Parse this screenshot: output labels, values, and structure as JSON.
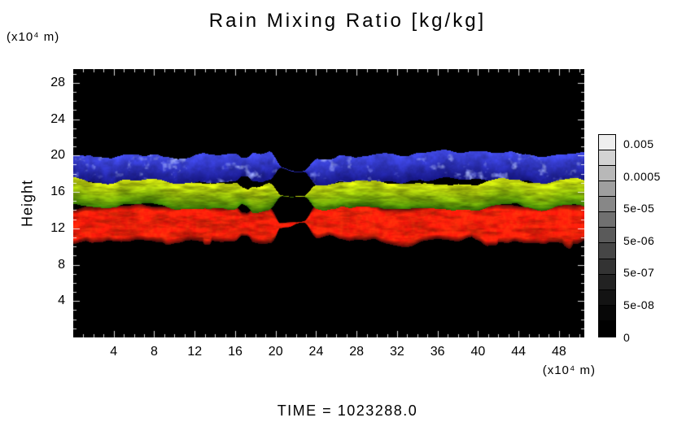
{
  "title": "Rain Mixing Ratio [kg/kg]",
  "axes": {
    "ylabel": "Height",
    "y_unit": "(x10⁴ m)",
    "x_unit": "(x10⁴ m)"
  },
  "time_label": "TIME  =  1023288.0",
  "chart_data": {
    "type": "heatmap",
    "title": "Rain Mixing Ratio [kg/kg]",
    "xlabel": "(x10⁴ m)",
    "ylabel": "Height (x10⁴ m)",
    "xlim": [
      0,
      50.5
    ],
    "ylim": [
      0,
      29.5
    ],
    "xticks": [
      4,
      8,
      12,
      16,
      20,
      24,
      28,
      32,
      36,
      40,
      44,
      48
    ],
    "yticks": [
      4,
      8,
      12,
      16,
      20,
      24,
      28
    ],
    "grid": false,
    "background": "#000000",
    "legend_position": "colorbar-right",
    "colorbar_labels": [
      "0.005",
      "0.0005",
      "5e-05",
      "5e-06",
      "5e-07",
      "5e-08",
      "0"
    ],
    "colorbar_segments": 13,
    "bands": [
      {
        "name": "upper-layer",
        "color": "#3a4cc8",
        "y_range": [
          16.9,
          20.1
        ]
      },
      {
        "name": "middle-layer",
        "color": "#a6c80e",
        "y_range": [
          14.3,
          17.1
        ]
      },
      {
        "name": "lower-layer",
        "color": "#dd1408",
        "y_range": [
          10.6,
          14.6
        ]
      }
    ],
    "gap_x_range": [
      20.3,
      23.3
    ],
    "time_value": "1023288.0"
  }
}
